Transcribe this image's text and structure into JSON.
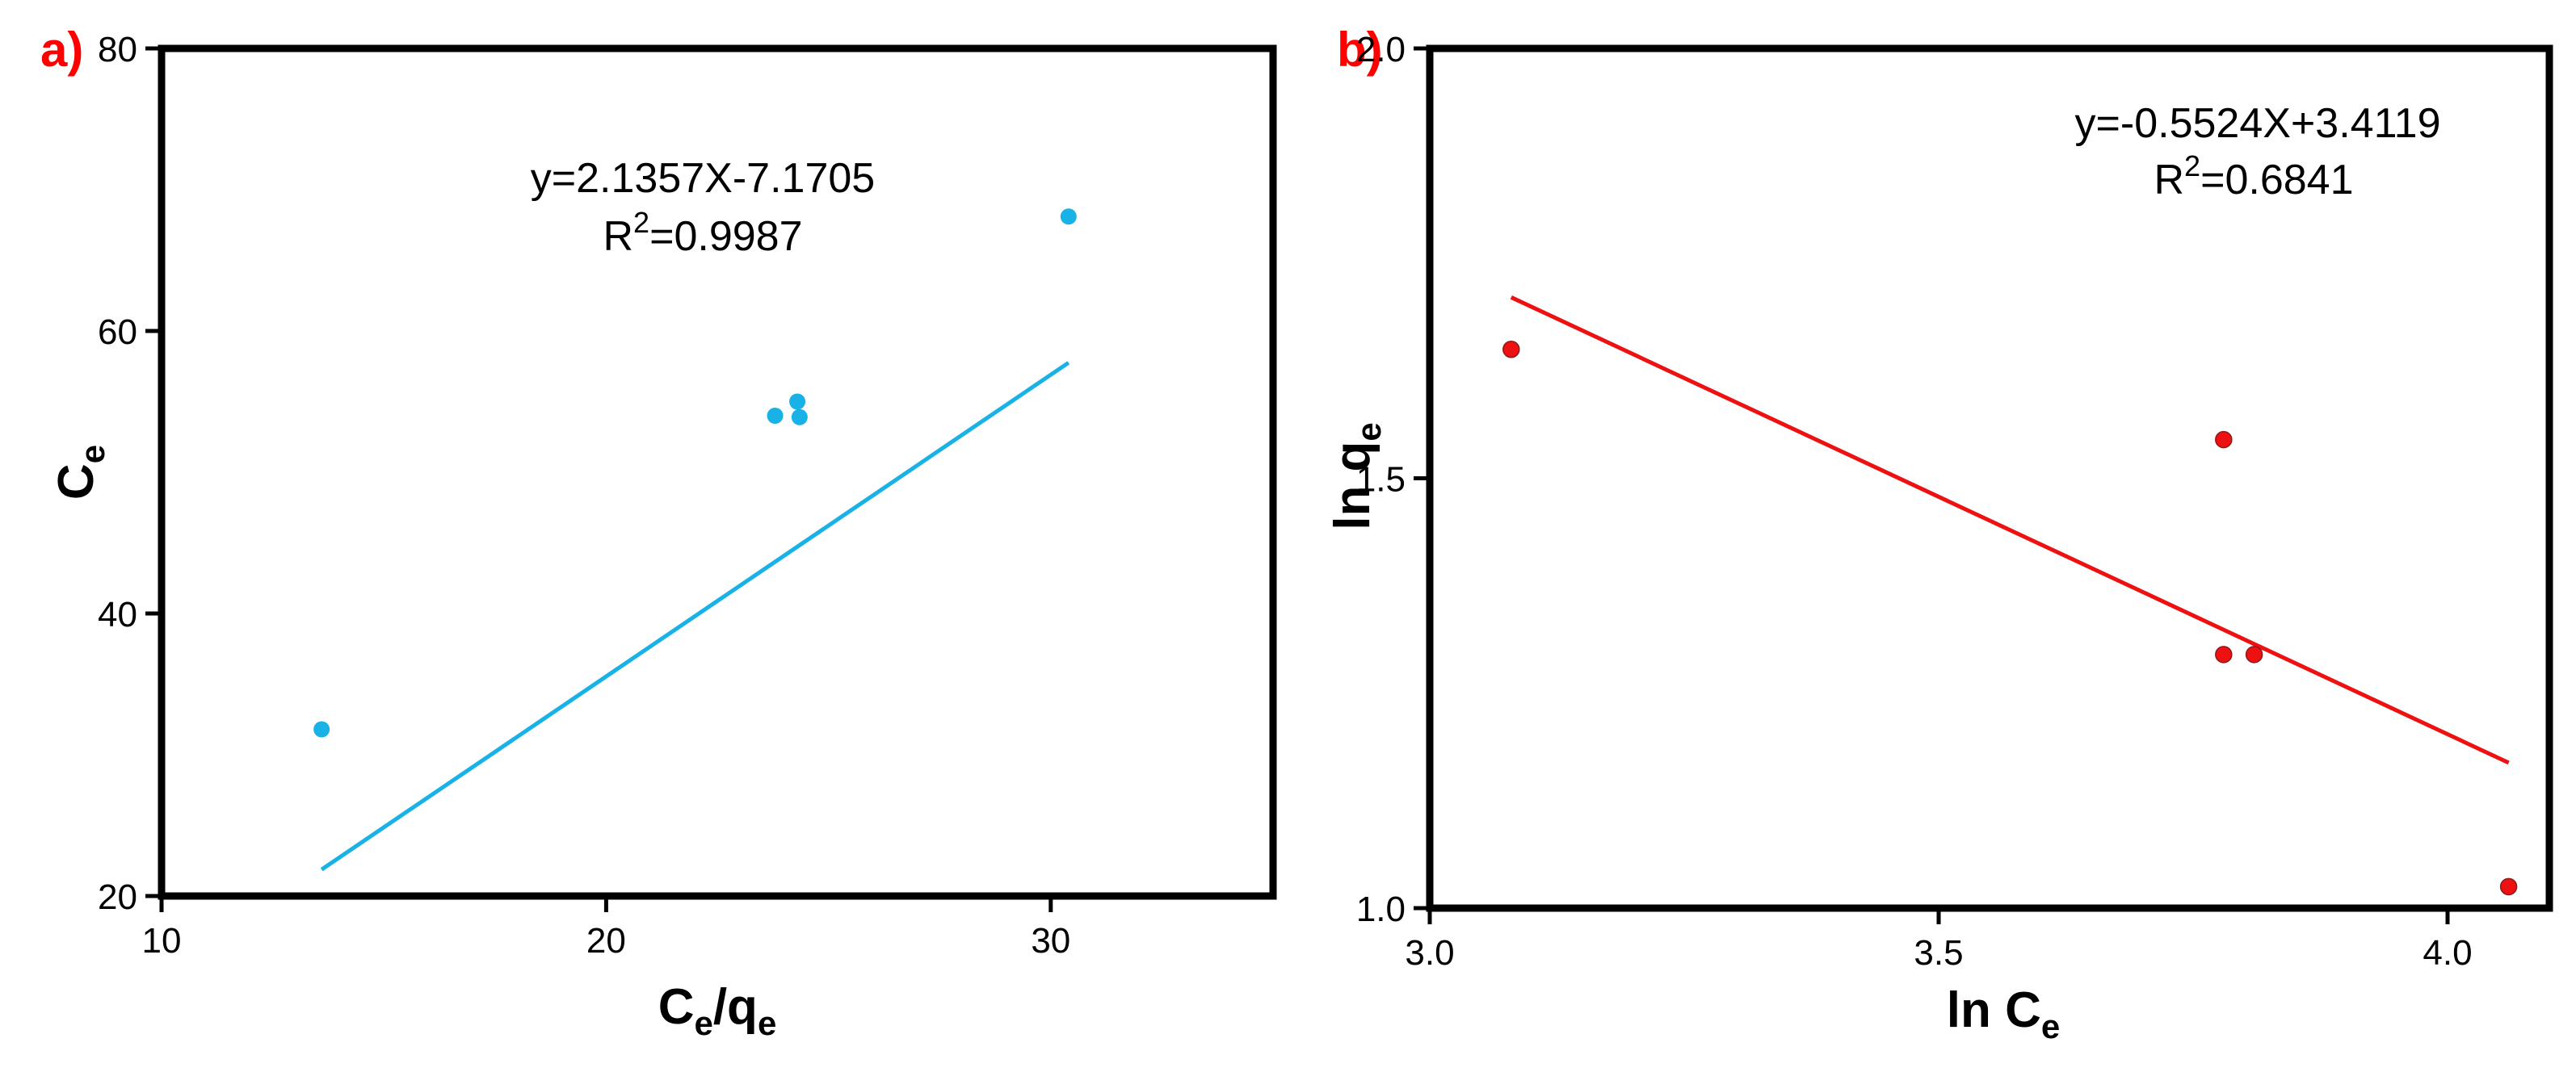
{
  "colors": {
    "panel_label": "#ff0000",
    "series_a": "#19b2e6",
    "series_b": "#ee1111",
    "axis": "#000000"
  },
  "chart_data": [
    {
      "type": "scatter",
      "panel_label": "a)",
      "xlabel": {
        "main": "C",
        "sub": "e",
        "sep": "/q",
        "sub2": "e"
      },
      "ylabel": {
        "main": "C",
        "sub": "e"
      },
      "xlim": [
        10,
        35
      ],
      "ylim": [
        20,
        80
      ],
      "xticks": [
        "10",
        "20",
        "30"
      ],
      "xtick_values": [
        10,
        20,
        30
      ],
      "yticks": [
        "20",
        "40",
        "60",
        "80"
      ],
      "ytick_values": [
        20,
        40,
        60,
        80
      ],
      "grid": false,
      "legend": "none",
      "points": [
        {
          "x": 13.6,
          "y": 31.8
        },
        {
          "x": 23.8,
          "y": 54.0
        },
        {
          "x": 24.3,
          "y": 55.0
        },
        {
          "x": 24.35,
          "y": 53.9
        },
        {
          "x": 30.4,
          "y": 68.1
        }
      ],
      "fit_line": {
        "x_from": 13.6,
        "x_to": 30.4
      },
      "equation": "y=2.1357X-7.1705",
      "r2_prefix": "R",
      "r2_sup": "2",
      "r2_value": "=0.9987",
      "fit_slope": 2.1357,
      "fit_intercept": -7.1705
    },
    {
      "type": "scatter",
      "panel_label": "b)",
      "xlabel": {
        "main": "ln C",
        "sub": "e"
      },
      "ylabel": {
        "main": "ln q",
        "sub": "e"
      },
      "xlim": [
        3.0,
        4.1
      ],
      "ylim": [
        1.0,
        2.0
      ],
      "xticks": [
        "3.0",
        "3.5",
        "4.0"
      ],
      "xtick_values": [
        3.0,
        3.5,
        4.0
      ],
      "yticks": [
        "1.0",
        "1.5",
        "2.0"
      ],
      "ytick_values": [
        1.0,
        1.5,
        2.0
      ],
      "grid": false,
      "legend": "none",
      "points": [
        {
          "x": 3.08,
          "y": 1.65
        },
        {
          "x": 3.78,
          "y": 1.545
        },
        {
          "x": 3.78,
          "y": 1.295
        },
        {
          "x": 3.81,
          "y": 1.295
        },
        {
          "x": 4.06,
          "y": 1.025
        }
      ],
      "fit_line": {
        "x_from": 3.08,
        "x_to": 4.06
      },
      "equation": "y=-0.5524X+3.4119",
      "r2_prefix": "R",
      "r2_sup": "2",
      "r2_value": "=0.6841",
      "fit_slope": -0.5524,
      "fit_intercept": 3.4119
    }
  ]
}
